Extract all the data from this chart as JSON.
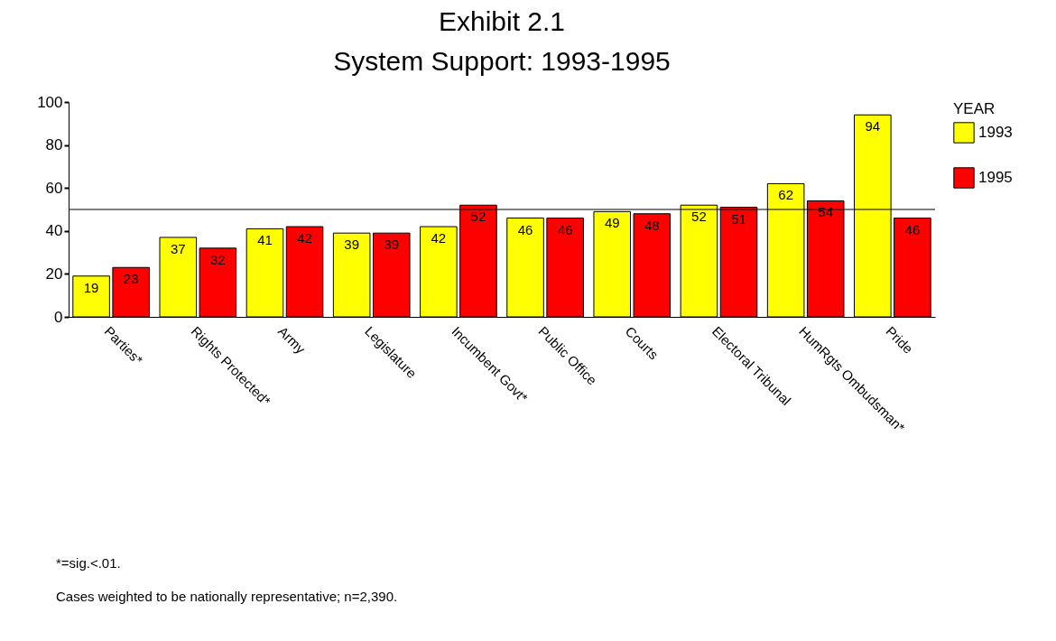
{
  "chart_data": {
    "type": "bar",
    "title": "Exhibit 2.1",
    "subtitle": "System Support: 1993-1995",
    "categories": [
      "Parties*",
      "Rights Protected*",
      "Army",
      "Legislature",
      "Incumbent Govt*",
      "Public Office",
      "Courts",
      "Electoral Tribunal",
      "HumRgts Ombudsman*",
      "Pride"
    ],
    "series": [
      {
        "name": "1993",
        "color": "#ffff00",
        "values": [
          19,
          37,
          41,
          39,
          42,
          46,
          49,
          52,
          62,
          94
        ]
      },
      {
        "name": "1995",
        "color": "#ff0000",
        "values": [
          23,
          32,
          42,
          39,
          52,
          46,
          48,
          51,
          54,
          46
        ]
      }
    ],
    "ylim": [
      0,
      100
    ],
    "yticks": [
      0,
      20,
      40,
      60,
      80,
      100
    ],
    "grid": false,
    "legend": "right",
    "legend_title": "YEAR",
    "data_labels": true,
    "ref_lines": [
      {
        "axis": "y",
        "value": 50,
        "color": "#000000"
      }
    ],
    "annotations": [
      "*=sig.<.01.",
      "Cases weighted to be nationally representative; n=2,390."
    ]
  }
}
